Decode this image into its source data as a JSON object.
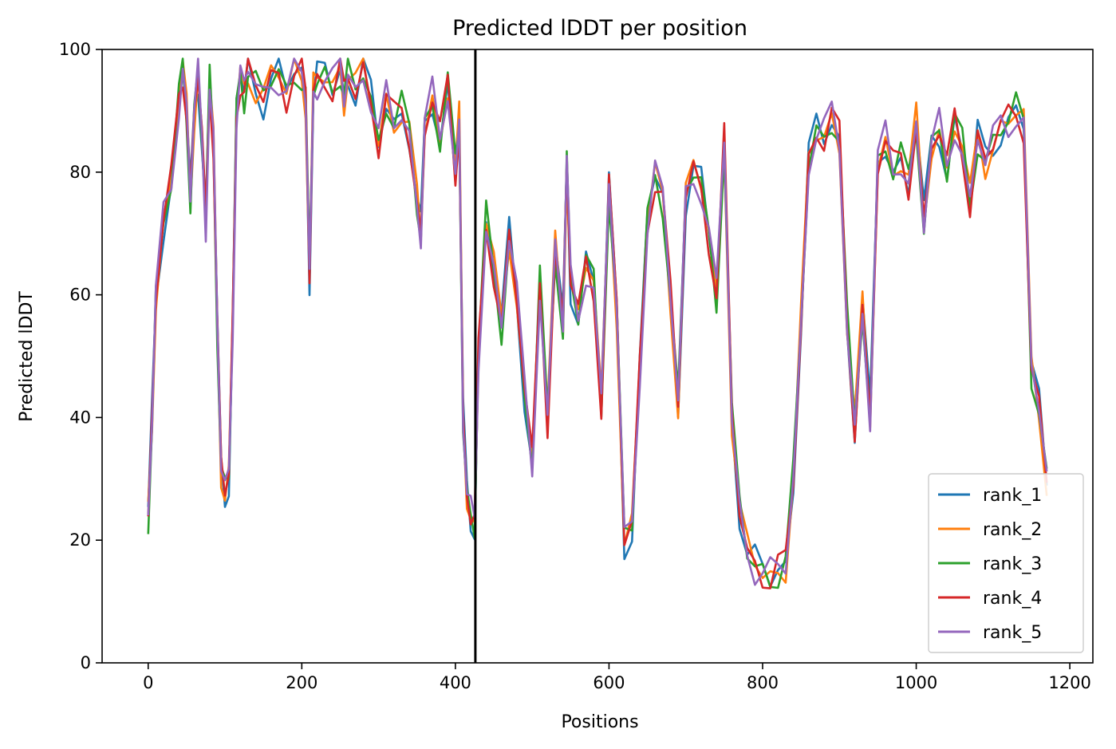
{
  "chart_data": {
    "type": "line",
    "title": "Predicted lDDT per position",
    "xlabel": "Positions",
    "ylabel": "Predicted lDDT",
    "xlim": [
      -60,
      1230
    ],
    "ylim": [
      0,
      100
    ],
    "xticks": [
      0,
      200,
      400,
      600,
      800,
      1000,
      1200
    ],
    "yticks": [
      0,
      20,
      40,
      60,
      80,
      100
    ],
    "grid": false,
    "legend_position": "lower-right",
    "vertical_line_x": 426,
    "series": [
      {
        "name": "rank_1",
        "color": "#1f77b4"
      },
      {
        "name": "rank_2",
        "color": "#ff7f0e"
      },
      {
        "name": "rank_3",
        "color": "#2ca02c"
      },
      {
        "name": "rank_4",
        "color": "#d62728"
      },
      {
        "name": "rank_5",
        "color": "#9467bd"
      }
    ],
    "x": [
      0,
      5,
      10,
      20,
      30,
      40,
      45,
      50,
      55,
      60,
      65,
      70,
      75,
      80,
      85,
      90,
      95,
      100,
      105,
      110,
      115,
      120,
      125,
      130,
      140,
      150,
      160,
      170,
      180,
      190,
      200,
      205,
      210,
      215,
      220,
      230,
      240,
      250,
      255,
      260,
      270,
      280,
      290,
      300,
      310,
      320,
      330,
      340,
      350,
      355,
      360,
      370,
      380,
      390,
      400,
      405,
      410,
      415,
      420,
      425,
      430,
      440,
      450,
      460,
      470,
      480,
      490,
      500,
      510,
      520,
      530,
      540,
      545,
      550,
      560,
      570,
      580,
      590,
      600,
      610,
      620,
      630,
      640,
      650,
      660,
      670,
      680,
      690,
      700,
      710,
      720,
      730,
      740,
      750,
      760,
      770,
      780,
      790,
      800,
      810,
      820,
      830,
      840,
      850,
      860,
      870,
      880,
      890,
      900,
      910,
      920,
      930,
      940,
      950,
      960,
      970,
      980,
      990,
      1000,
      1010,
      1020,
      1030,
      1040,
      1050,
      1060,
      1070,
      1080,
      1090,
      1100,
      1110,
      1120,
      1130,
      1140,
      1150,
      1160,
      1170
    ],
    "base": [
      24,
      40,
      60,
      72,
      78,
      92,
      97,
      90,
      76,
      90,
      96,
      85,
      72,
      95,
      85,
      55,
      32,
      28,
      30,
      55,
      90,
      96,
      93,
      97,
      94,
      92,
      95,
      96,
      93,
      97,
      96,
      92,
      63,
      93,
      95,
      96,
      94,
      97,
      92,
      96,
      93,
      97,
      92,
      85,
      92,
      88,
      90,
      86,
      75,
      70,
      88,
      92,
      85,
      94,
      80,
      88,
      40,
      28,
      24,
      22,
      50,
      72,
      64,
      55,
      70,
      60,
      44,
      32,
      62,
      40,
      68,
      55,
      82,
      62,
      56,
      65,
      62,
      42,
      78,
      58,
      20,
      22,
      48,
      72,
      80,
      76,
      60,
      42,
      76,
      80,
      78,
      70,
      60,
      85,
      40,
      25,
      18,
      16,
      15,
      14,
      15,
      16,
      30,
      55,
      82,
      87,
      86,
      89,
      85,
      55,
      38,
      58,
      40,
      82,
      85,
      80,
      82,
      78,
      88,
      72,
      85,
      87,
      80,
      88,
      84,
      75,
      86,
      82,
      85,
      87,
      88,
      90,
      88,
      48,
      42,
      30
    ]
  }
}
